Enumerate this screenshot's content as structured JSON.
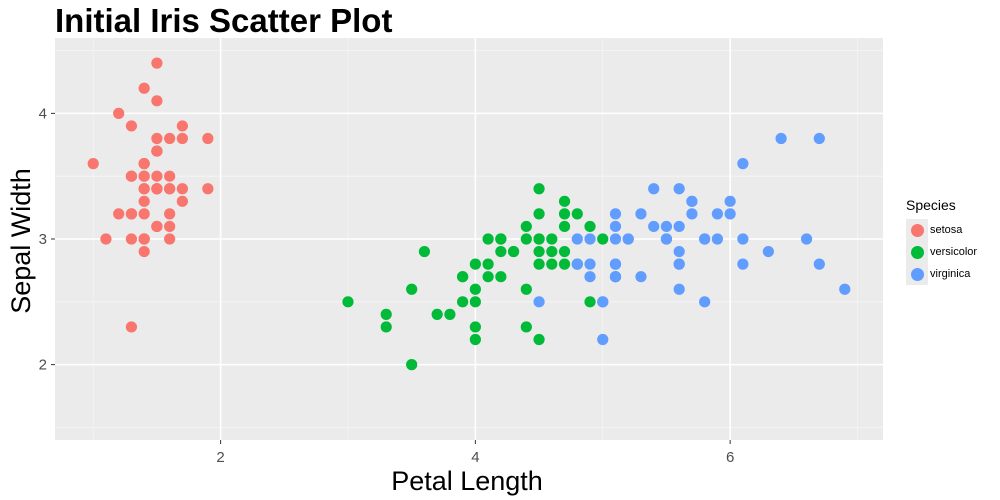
{
  "chart_data": {
    "type": "scatter",
    "title": "Initial Iris Scatter Plot",
    "xlabel": "Petal Length",
    "ylabel": "Sepal Width",
    "xlim": [
      0.7,
      7.2
    ],
    "ylim": [
      1.4,
      4.6
    ],
    "xticks": [
      2,
      4,
      6
    ],
    "yticks": [
      2,
      3,
      4
    ],
    "grid": true,
    "legend": {
      "title": "Species",
      "placement": "right"
    },
    "series": [
      {
        "name": "setosa",
        "color": "#F8766D",
        "points": [
          [
            1.4,
            3.5
          ],
          [
            1.4,
            3.0
          ],
          [
            1.3,
            3.2
          ],
          [
            1.5,
            3.1
          ],
          [
            1.4,
            3.6
          ],
          [
            1.7,
            3.9
          ],
          [
            1.4,
            3.4
          ],
          [
            1.5,
            3.4
          ],
          [
            1.4,
            2.9
          ],
          [
            1.5,
            3.1
          ],
          [
            1.5,
            3.7
          ],
          [
            1.6,
            3.4
          ],
          [
            1.4,
            3.0
          ],
          [
            1.1,
            3.0
          ],
          [
            1.2,
            4.0
          ],
          [
            1.5,
            4.4
          ],
          [
            1.3,
            3.9
          ],
          [
            1.4,
            3.5
          ],
          [
            1.7,
            3.8
          ],
          [
            1.5,
            3.8
          ],
          [
            1.7,
            3.4
          ],
          [
            1.5,
            3.7
          ],
          [
            1.0,
            3.6
          ],
          [
            1.7,
            3.3
          ],
          [
            1.9,
            3.4
          ],
          [
            1.6,
            3.0
          ],
          [
            1.6,
            3.4
          ],
          [
            1.5,
            3.5
          ],
          [
            1.4,
            3.4
          ],
          [
            1.6,
            3.2
          ],
          [
            1.6,
            3.1
          ],
          [
            1.5,
            3.4
          ],
          [
            1.5,
            4.1
          ],
          [
            1.4,
            4.2
          ],
          [
            1.5,
            3.1
          ],
          [
            1.2,
            3.2
          ],
          [
            1.3,
            3.5
          ],
          [
            1.4,
            3.6
          ],
          [
            1.3,
            3.0
          ],
          [
            1.5,
            3.4
          ],
          [
            1.3,
            3.5
          ],
          [
            1.3,
            2.3
          ],
          [
            1.3,
            3.2
          ],
          [
            1.6,
            3.5
          ],
          [
            1.9,
            3.8
          ],
          [
            1.4,
            3.0
          ],
          [
            1.6,
            3.8
          ],
          [
            1.4,
            3.2
          ],
          [
            1.5,
            3.7
          ],
          [
            1.4,
            3.3
          ]
        ]
      },
      {
        "name": "versicolor",
        "color": "#00BA38",
        "points": [
          [
            4.7,
            3.2
          ],
          [
            4.5,
            3.2
          ],
          [
            4.9,
            3.1
          ],
          [
            4.0,
            2.3
          ],
          [
            4.6,
            2.8
          ],
          [
            4.5,
            2.8
          ],
          [
            4.7,
            3.3
          ],
          [
            3.3,
            2.4
          ],
          [
            4.6,
            2.9
          ],
          [
            3.9,
            2.7
          ],
          [
            3.5,
            2.0
          ],
          [
            4.2,
            3.0
          ],
          [
            4.0,
            2.2
          ],
          [
            4.7,
            2.9
          ],
          [
            3.6,
            2.9
          ],
          [
            4.4,
            3.1
          ],
          [
            4.5,
            3.0
          ],
          [
            4.1,
            2.7
          ],
          [
            4.5,
            2.2
          ],
          [
            3.9,
            2.5
          ],
          [
            4.8,
            3.2
          ],
          [
            4.0,
            2.8
          ],
          [
            4.9,
            2.5
          ],
          [
            4.7,
            2.8
          ],
          [
            4.3,
            2.9
          ],
          [
            4.4,
            3.0
          ],
          [
            4.8,
            2.8
          ],
          [
            5.0,
            3.0
          ],
          [
            4.5,
            2.9
          ],
          [
            3.5,
            2.6
          ],
          [
            3.8,
            2.4
          ],
          [
            3.7,
            2.4
          ],
          [
            3.9,
            2.7
          ],
          [
            5.1,
            2.7
          ],
          [
            4.5,
            3.0
          ],
          [
            4.5,
            3.4
          ],
          [
            4.7,
            3.1
          ],
          [
            4.4,
            2.3
          ],
          [
            4.1,
            3.0
          ],
          [
            4.0,
            2.5
          ],
          [
            4.4,
            2.6
          ],
          [
            4.6,
            3.0
          ],
          [
            4.0,
            2.6
          ],
          [
            3.3,
            2.3
          ],
          [
            4.2,
            2.7
          ],
          [
            4.2,
            3.0
          ],
          [
            4.2,
            2.9
          ],
          [
            4.3,
            2.9
          ],
          [
            3.0,
            2.5
          ],
          [
            4.1,
            2.8
          ]
        ]
      },
      {
        "name": "virginica",
        "color": "#619CFF",
        "points": [
          [
            6.0,
            3.3
          ],
          [
            5.1,
            2.7
          ],
          [
            5.9,
            3.0
          ],
          [
            5.6,
            2.9
          ],
          [
            5.8,
            3.0
          ],
          [
            6.6,
            3.0
          ],
          [
            4.5,
            2.5
          ],
          [
            6.3,
            2.9
          ],
          [
            5.8,
            2.5
          ],
          [
            6.1,
            3.6
          ],
          [
            5.1,
            3.2
          ],
          [
            5.3,
            2.7
          ],
          [
            5.5,
            3.0
          ],
          [
            5.0,
            2.5
          ],
          [
            5.1,
            2.8
          ],
          [
            5.3,
            3.2
          ],
          [
            5.5,
            3.0
          ],
          [
            6.7,
            3.8
          ],
          [
            6.9,
            2.6
          ],
          [
            5.0,
            2.2
          ],
          [
            5.7,
            3.2
          ],
          [
            4.9,
            2.8
          ],
          [
            6.7,
            2.8
          ],
          [
            4.9,
            2.7
          ],
          [
            5.7,
            3.3
          ],
          [
            6.0,
            3.2
          ],
          [
            4.8,
            2.8
          ],
          [
            4.9,
            3.0
          ],
          [
            5.6,
            2.8
          ],
          [
            5.8,
            3.0
          ],
          [
            6.1,
            2.8
          ],
          [
            6.4,
            3.8
          ],
          [
            5.6,
            2.8
          ],
          [
            5.1,
            2.8
          ],
          [
            5.6,
            2.6
          ],
          [
            6.1,
            3.0
          ],
          [
            5.6,
            3.4
          ],
          [
            5.5,
            3.1
          ],
          [
            4.8,
            3.0
          ],
          [
            5.4,
            3.1
          ],
          [
            5.6,
            3.1
          ],
          [
            5.1,
            3.1
          ],
          [
            5.1,
            2.7
          ],
          [
            5.9,
            3.2
          ],
          [
            5.7,
            3.3
          ],
          [
            5.2,
            3.0
          ],
          [
            5.0,
            2.5
          ],
          [
            5.2,
            3.0
          ],
          [
            5.4,
            3.4
          ],
          [
            5.1,
            3.0
          ]
        ]
      }
    ]
  }
}
